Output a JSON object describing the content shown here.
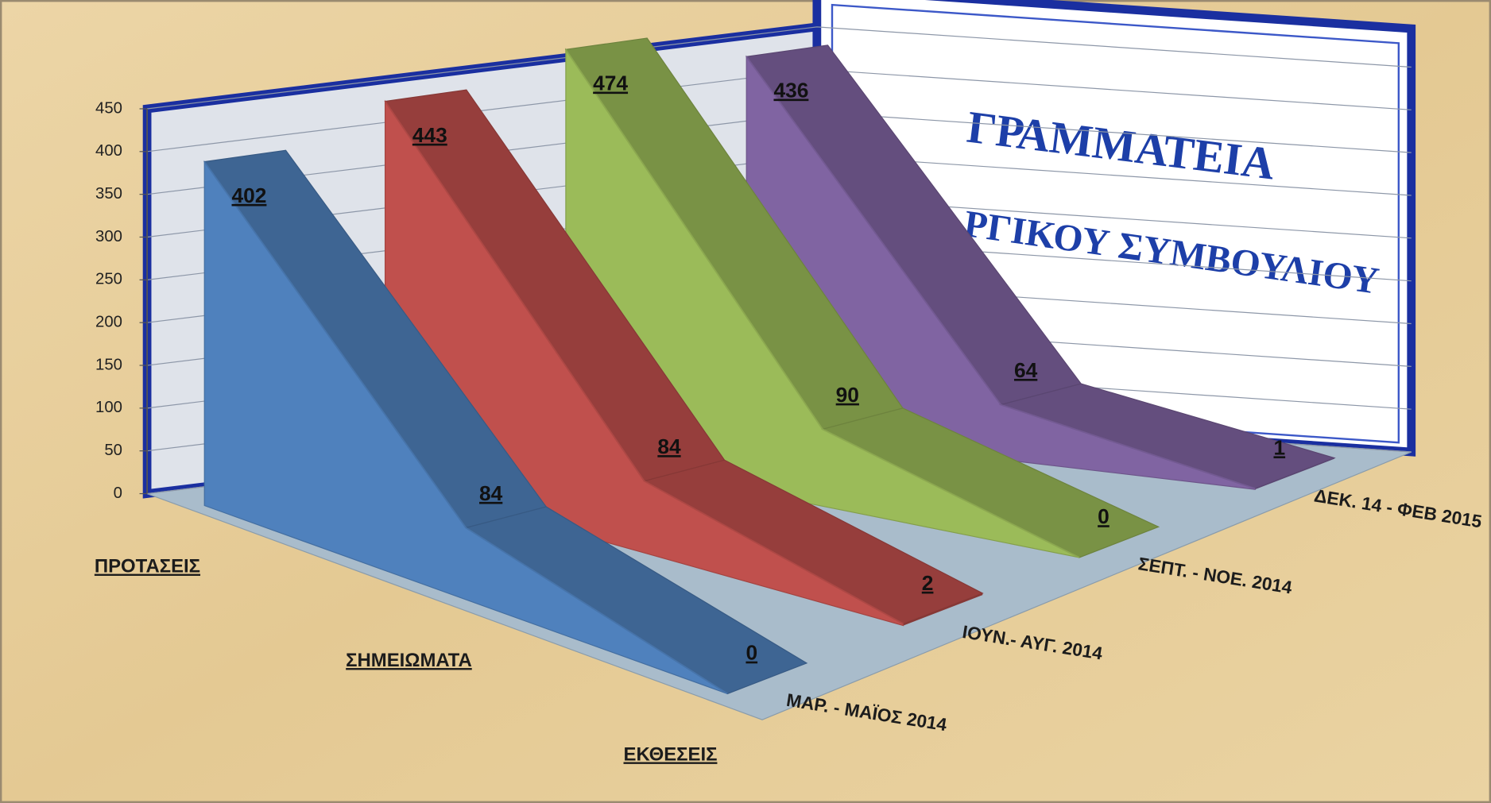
{
  "chart_data": {
    "type": "area3d",
    "categories": [
      "ΠΡΟΤΑΣΕΙΣ",
      "ΣΗΜΕΙΩΜΑΤΑ",
      "ΕΚΘΕΣΕΙΣ"
    ],
    "series": [
      {
        "name": "ΜΑΡ. - ΜΑΪΟΣ 2014",
        "color": "#4f81bd",
        "values": [
          402,
          84,
          0
        ]
      },
      {
        "name": "ΙΟΥΝ.-  ΑΥΓ. 2014",
        "color": "#c0504d",
        "values": [
          443,
          84,
          2
        ]
      },
      {
        "name": "ΣΕΠΤ. - ΝΟΕ. 2014",
        "color": "#9bbb59",
        "values": [
          474,
          90,
          0
        ]
      },
      {
        "name": "ΔΕΚ. 14 - ΦΕΒ 2015",
        "color": "#8064a2",
        "values": [
          436,
          64,
          1
        ]
      }
    ],
    "ylim": [
      0,
      450
    ],
    "yticks": [
      0,
      50,
      100,
      150,
      200,
      250,
      300,
      350,
      400,
      450
    ],
    "grid": true,
    "background_text": [
      "ΓΡΑΜΜΑΤΕΙΑ",
      "ΡΓΙΚΟΥ ΣΥΜΒΟΥΛΙΟΥ"
    ]
  }
}
